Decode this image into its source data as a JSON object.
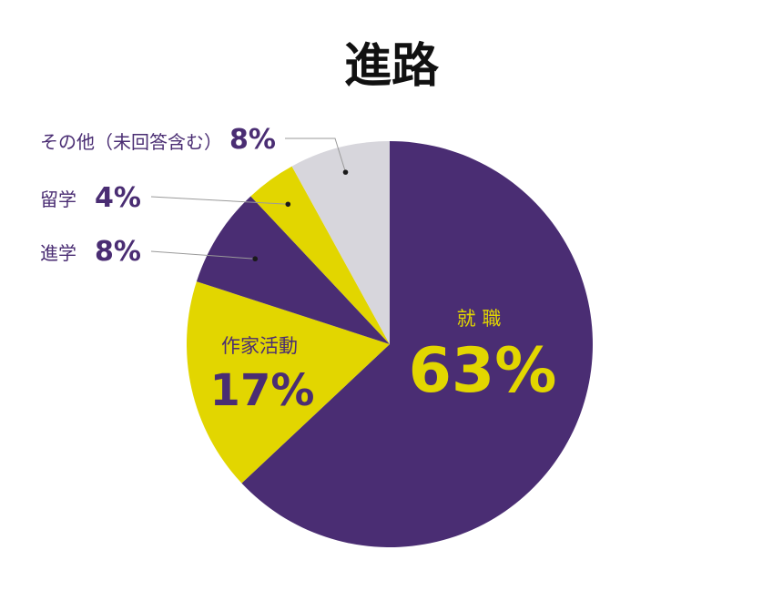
{
  "colors": {
    "purple": "#4a2d73",
    "yellow": "#e2d600",
    "gray": "#d7d6dc",
    "leader": "#9a9a9a"
  },
  "chart_data": {
    "type": "pie",
    "title": "進路",
    "start": "12 o'clock, clockwise",
    "slices": [
      {
        "label": "就 職",
        "value": 63,
        "value_label": "63%",
        "color": "#4a2d73"
      },
      {
        "label": "作家活動",
        "value": 17,
        "value_label": "17%",
        "color": "#e2d600"
      },
      {
        "label": "進学",
        "value": 8,
        "value_label": "8%",
        "color": "#4a2d73"
      },
      {
        "label": "留学",
        "value": 4,
        "value_label": "4%",
        "color": "#e2d600"
      },
      {
        "label": "その他（未回答含む）",
        "value": 8,
        "value_label": "8%",
        "color": "#d7d6dc"
      }
    ]
  }
}
